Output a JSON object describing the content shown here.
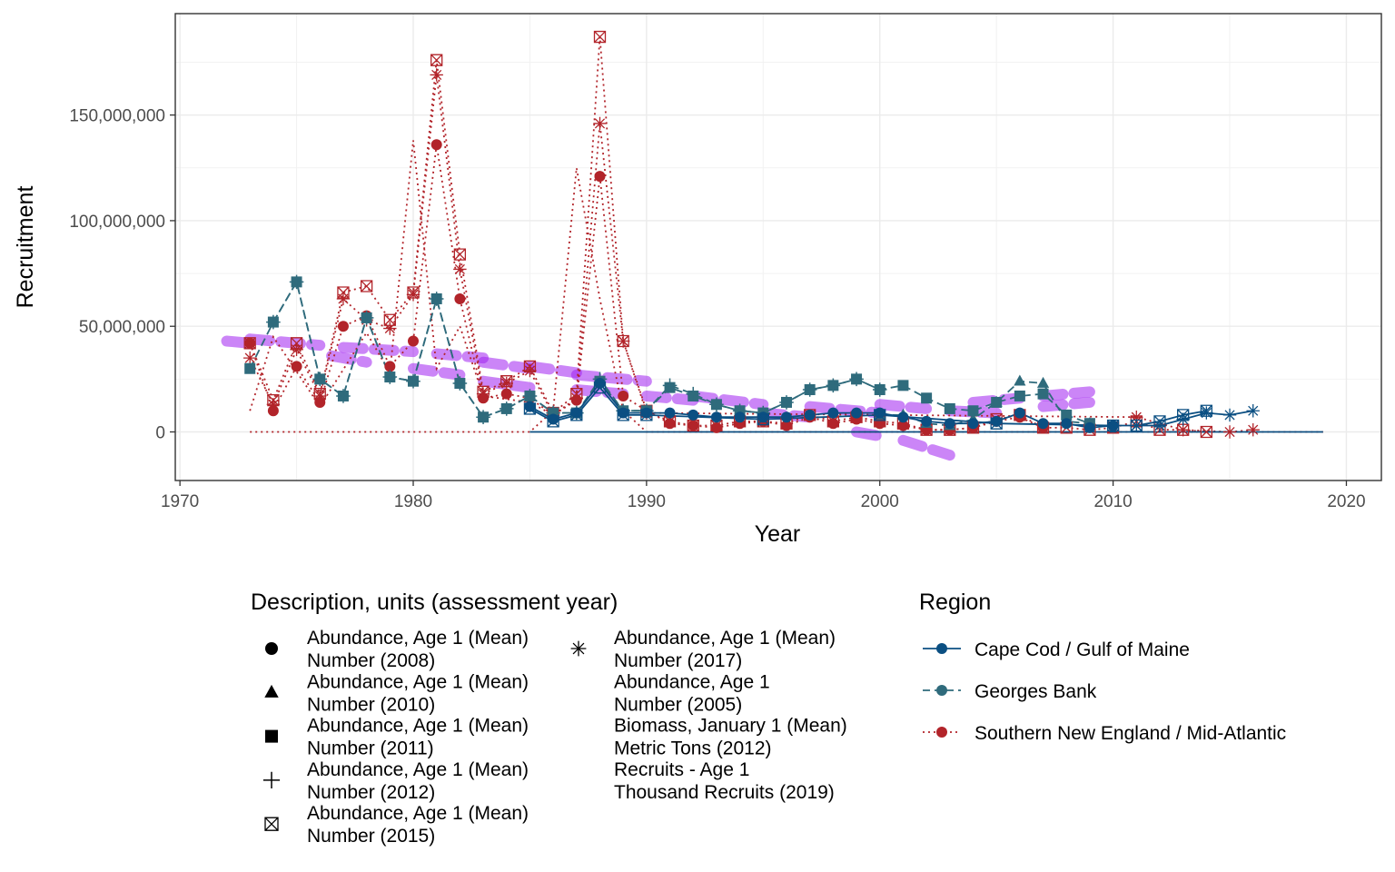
{
  "chart_data": {
    "type": "line",
    "xlabel": "Year",
    "ylabel": "Recruitment",
    "xlim": [
      1969.8,
      2021.5
    ],
    "ylim": [
      -23000000,
      198000000
    ],
    "x_ticks": [
      1970,
      1980,
      1990,
      2000,
      2010,
      2020
    ],
    "x_tick_labels": [
      "1970",
      "1980",
      "1990",
      "2000",
      "2010",
      "2020"
    ],
    "y_ticks": [
      0,
      50000000,
      100000000,
      150000000
    ],
    "y_tick_labels": [
      "0",
      "50,000,000",
      "100,000,000",
      "150,000,000"
    ],
    "grid": true,
    "shape_legend": {
      "title": "Description, units (assessment year)",
      "entries": [
        {
          "shape": "circle",
          "line1": "Abundance, Age 1 (Mean)",
          "line2": "Number (2008)"
        },
        {
          "shape": "triangle",
          "line1": "Abundance, Age 1 (Mean)",
          "line2": "Number (2010)"
        },
        {
          "shape": "square",
          "line1": "Abundance, Age 1 (Mean)",
          "line2": "Number (2011)"
        },
        {
          "shape": "plus",
          "line1": "Abundance, Age 1 (Mean)",
          "line2": "Number (2012)"
        },
        {
          "shape": "boxx",
          "line1": "Abundance, Age 1 (Mean)",
          "line2": "Number (2015)"
        },
        {
          "shape": "star",
          "line1": "Abundance, Age 1 (Mean)",
          "line2": "Number (2017)"
        },
        {
          "shape": "none",
          "line1": "Abundance, Age 1",
          "line2": "Number (2005)"
        },
        {
          "shape": "none",
          "line1": "Biomass, January 1 (Mean)",
          "line2": "Metric Tons (2012)"
        },
        {
          "shape": "none",
          "line1": "Recruits - Age 1",
          "line2": "Thousand Recruits (2019)"
        }
      ]
    },
    "region_legend": {
      "title": "Region",
      "entries": [
        {
          "name": "Cape Cod / Gulf of Maine",
          "color": "#0b4f82",
          "dash": "solid"
        },
        {
          "name": "Georges Bank",
          "color": "#2f6b7c",
          "dash": "dashed"
        },
        {
          "name": "Southern New England / Mid-Atlantic",
          "color": "#b2242a",
          "dash": "dotted"
        }
      ]
    },
    "series": [
      {
        "region": "Southern New England / Mid-Atlantic",
        "shape": "circle",
        "color": "#b2242a",
        "dash": "dotted",
        "x": [
          1973,
          1974,
          1975,
          1976,
          1977,
          1978,
          1979,
          1980,
          1981,
          1982,
          1983,
          1984,
          1985,
          1986,
          1987,
          1988,
          1989,
          1990,
          1991,
          1992,
          1993,
          1994,
          1995,
          1996,
          1997,
          1998,
          1999,
          2000,
          2001,
          2002,
          2003,
          2004,
          2005,
          2006,
          2007
        ],
        "y": [
          42000000,
          10000000,
          31000000,
          14000000,
          50000000,
          55000000,
          31000000,
          43000000,
          136000000,
          63000000,
          16000000,
          18000000,
          16000000,
          8000000,
          15000000,
          121000000,
          17000000,
          10000000,
          4000000,
          3000000,
          2000000,
          4000000,
          5000000,
          3000000,
          7000000,
          4000000,
          6000000,
          4000000,
          3000000,
          1000000,
          1000000,
          2000000,
          5000000,
          7000000,
          2000000
        ]
      },
      {
        "region": "Southern New England / Mid-Atlantic",
        "shape": "boxx",
        "color": "#b2242a",
        "dash": "dotted",
        "x": [
          1973,
          1974,
          1975,
          1976,
          1977,
          1978,
          1979,
          1980,
          1981,
          1982,
          1983,
          1984,
          1985,
          1986,
          1987,
          1988,
          1989,
          1990,
          1991,
          1992,
          1993,
          1994,
          1995,
          1996,
          1997,
          1998,
          1999,
          2000,
          2001,
          2002,
          2003,
          2004,
          2005,
          2006,
          2007,
          2008,
          2009,
          2010,
          2011,
          2012,
          2013,
          2014
        ],
        "y": [
          42000000,
          15000000,
          42000000,
          18000000,
          66000000,
          69000000,
          53000000,
          66000000,
          176000000,
          84000000,
          19000000,
          24000000,
          31000000,
          9000000,
          18000000,
          187000000,
          43000000,
          10000000,
          5000000,
          3000000,
          3000000,
          5000000,
          5000000,
          4000000,
          8000000,
          5000000,
          7000000,
          5000000,
          4000000,
          1000000,
          1000000,
          2000000,
          6000000,
          8000000,
          2000000,
          2000000,
          1000000,
          2000000,
          5000000,
          1000000,
          1000000,
          0
        ]
      },
      {
        "region": "Southern New England / Mid-Atlantic",
        "shape": "star",
        "color": "#b2242a",
        "dash": "dotted",
        "x": [
          1973,
          1974,
          1975,
          1976,
          1977,
          1978,
          1979,
          1980,
          1981,
          1982,
          1983,
          1984,
          1985,
          1986,
          1987,
          1988,
          1989,
          1990,
          2011,
          2013,
          2015,
          2016
        ],
        "y": [
          35000000,
          13000000,
          39000000,
          17000000,
          63000000,
          53000000,
          49000000,
          65000000,
          169000000,
          77000000,
          18000000,
          23000000,
          29000000,
          8000000,
          16000000,
          146000000,
          43000000,
          9000000,
          7000000,
          1000000,
          0,
          1000000
        ]
      },
      {
        "region": "Southern New England / Mid-Atlantic",
        "shape": "none",
        "color": "#b2242a",
        "dash": "dotted",
        "x": [
          1973,
          1985,
          1986,
          1987,
          1988,
          1989,
          1990,
          2000,
          2010,
          2019
        ],
        "y": [
          0,
          0,
          10000000,
          125000000,
          63000000,
          10000000,
          0,
          0,
          0,
          0
        ]
      },
      {
        "region": "Southern New England / Mid-Atlantic",
        "shape": "none",
        "color": "#b2242a",
        "dash": "dotted",
        "x": [
          1973,
          1974,
          1976,
          1978,
          1979,
          1980,
          1981,
          1982,
          1983,
          1985,
          1986
        ],
        "y": [
          10000000,
          45000000,
          12000000,
          47000000,
          28000000,
          138000000,
          30000000,
          50000000,
          17000000,
          14000000,
          8000000
        ]
      },
      {
        "region": "Georges Bank",
        "shape": "square",
        "color": "#2f6b7c",
        "dash": "dashed",
        "x": [
          1973,
          1974,
          1975,
          1976,
          1977,
          1978,
          1979,
          1980,
          1981,
          1982,
          1983,
          1984,
          1985,
          1986,
          1987,
          1988,
          1989,
          1990,
          1991,
          1992,
          1993,
          1994,
          1995,
          1996,
          1997,
          1998,
          1999,
          2000,
          2001,
          2002,
          2003,
          2004,
          2005,
          2006,
          2007,
          2008,
          2009
        ],
        "y": [
          30000000,
          52000000,
          71000000,
          25000000,
          17000000,
          54000000,
          26000000,
          24000000,
          63000000,
          23000000,
          7000000,
          11000000,
          17000000,
          9000000,
          9000000,
          24000000,
          10000000,
          10000000,
          21000000,
          17000000,
          13000000,
          10000000,
          9000000,
          14000000,
          20000000,
          22000000,
          25000000,
          20000000,
          22000000,
          16000000,
          11000000,
          10000000,
          14000000,
          17000000,
          18000000,
          8000000,
          4000000
        ]
      },
      {
        "region": "Georges Bank",
        "shape": "triangle",
        "color": "#2f6b7c",
        "dash": "dashed",
        "x": [
          2000,
          2001,
          2002,
          2003,
          2004,
          2005,
          2006,
          2007,
          2008,
          2009
        ],
        "y": [
          8000000,
          8000000,
          4000000,
          3000000,
          6000000,
          14000000,
          24000000,
          23000000,
          5000000,
          4000000
        ]
      },
      {
        "region": "Georges Bank",
        "shape": "plus",
        "color": "#2f6b7c",
        "dash": "dashed",
        "x": [
          1974,
          1975,
          1976,
          1977,
          1978,
          1979,
          1980,
          1981,
          1982,
          1983,
          1984,
          1985,
          1986,
          1987,
          1988,
          1989,
          1990,
          1991,
          1992,
          1993,
          1994,
          1995,
          1996,
          1997,
          1998,
          1999,
          2000
        ],
        "y": [
          52000000,
          71000000,
          25000000,
          17000000,
          54000000,
          26000000,
          24000000,
          63000000,
          23000000,
          7000000,
          11000000,
          17000000,
          9000000,
          9000000,
          25000000,
          10000000,
          10000000,
          22000000,
          18000000,
          13000000,
          10000000,
          9000000,
          14000000,
          20000000,
          22000000,
          25000000,
          20000000
        ]
      },
      {
        "region": "Cape Cod / Gulf of Maine",
        "shape": "circle",
        "color": "#0b4f82",
        "dash": "solid",
        "x": [
          1985,
          1986,
          1987,
          1988,
          1989,
          1990,
          1991,
          1992,
          1993,
          1994,
          1995,
          1996,
          1997,
          1998,
          1999,
          2000,
          2001,
          2002,
          2003,
          2004,
          2005,
          2006,
          2007,
          2008,
          2009,
          2010
        ],
        "y": [
          12000000,
          6000000,
          9000000,
          23000000,
          9000000,
          9000000,
          9000000,
          8000000,
          7000000,
          7000000,
          7000000,
          7000000,
          8000000,
          9000000,
          9000000,
          9000000,
          7000000,
          5000000,
          4000000,
          4000000,
          5000000,
          9000000,
          4000000,
          4000000,
          2000000,
          3000000
        ]
      },
      {
        "region": "Cape Cod / Gulf of Maine",
        "shape": "boxx",
        "color": "#0b4f82",
        "dash": "solid",
        "x": [
          1985,
          1986,
          1987,
          1988,
          1989,
          1990,
          1995,
          2000,
          2005,
          2010,
          2011,
          2012,
          2013,
          2014
        ],
        "y": [
          11000000,
          5000000,
          8000000,
          21000000,
          8000000,
          8000000,
          6000000,
          8000000,
          4000000,
          3000000,
          3000000,
          5000000,
          8000000,
          10000000
        ]
      },
      {
        "region": "Cape Cod / Gulf of Maine",
        "shape": "star",
        "color": "#0b4f82",
        "dash": "solid",
        "x": [
          2011,
          2012,
          2013,
          2014,
          2015,
          2016
        ],
        "y": [
          3000000,
          3000000,
          6000000,
          9000000,
          8000000,
          10000000
        ]
      },
      {
        "region": "Cape Cod / Gulf of Maine",
        "shape": "none",
        "color": "#0b4f82",
        "dash": "solid",
        "x": [
          1985,
          1990,
          2000,
          2010,
          2019
        ],
        "y": [
          0,
          0,
          0,
          0,
          0
        ]
      }
    ],
    "segments": [
      {
        "color": "#a020f0",
        "dash": "thick-dashed",
        "x": [
          1972,
          1973
        ],
        "y": [
          43000000,
          42000000
        ]
      },
      {
        "color": "#a020f0",
        "dash": "thick-dashed",
        "x": [
          1973,
          1976
        ],
        "y": [
          44000000,
          41000000
        ]
      },
      {
        "color": "#a020f0",
        "dash": "thick-dashed",
        "x": [
          1976.5,
          1978
        ],
        "y": [
          36000000,
          33000000
        ]
      },
      {
        "color": "#a020f0",
        "dash": "thick-dashed",
        "x": [
          1977,
          1980
        ],
        "y": [
          40000000,
          38000000
        ]
      },
      {
        "color": "#a020f0",
        "dash": "thick-dashed",
        "x": [
          1980,
          1982
        ],
        "y": [
          30000000,
          27000000
        ]
      },
      {
        "color": "#a020f0",
        "dash": "thick-dashed",
        "x": [
          1981,
          1983
        ],
        "y": [
          37000000,
          35000000
        ]
      },
      {
        "color": "#a020f0",
        "dash": "thick-dashed",
        "x": [
          1983,
          1985
        ],
        "y": [
          33000000,
          30000000
        ]
      },
      {
        "color": "#a020f0",
        "dash": "thick-dashed",
        "x": [
          1983,
          1985
        ],
        "y": [
          24000000,
          21000000
        ]
      },
      {
        "color": "#a020f0",
        "dash": "thick-dashed",
        "x": [
          1985,
          1987
        ],
        "y": [
          31000000,
          28000000
        ]
      },
      {
        "color": "#a020f0",
        "dash": "thick-dashed",
        "x": [
          1987,
          1989
        ],
        "y": [
          20000000,
          18000000
        ]
      },
      {
        "color": "#a020f0",
        "dash": "thick-dashed",
        "x": [
          1987,
          1990
        ],
        "y": [
          27000000,
          24000000
        ]
      },
      {
        "color": "#a020f0",
        "dash": "thick-dashed",
        "x": [
          1990,
          1992
        ],
        "y": [
          17000000,
          15000000
        ]
      },
      {
        "color": "#a020f0",
        "dash": "thick-dashed",
        "x": [
          1992,
          1995
        ],
        "y": [
          17000000,
          13000000
        ]
      },
      {
        "color": "#a020f0",
        "dash": "thick-dashed",
        "x": [
          1995,
          1997
        ],
        "y": [
          9000000,
          7000000
        ]
      },
      {
        "color": "#a020f0",
        "dash": "thick-dashed",
        "x": [
          1997,
          2000
        ],
        "y": [
          12000000,
          9000000
        ]
      },
      {
        "color": "#a020f0",
        "dash": "thick-dashed",
        "x": [
          1999,
          2000
        ],
        "y": [
          0,
          -2000000
        ]
      },
      {
        "color": "#a020f0",
        "dash": "thick-dashed",
        "x": [
          2000,
          2002
        ],
        "y": [
          13000000,
          11000000
        ]
      },
      {
        "color": "#a020f0",
        "dash": "thick-dashed",
        "x": [
          2001,
          2003
        ],
        "y": [
          -4000000,
          -11000000
        ]
      },
      {
        "color": "#a020f0",
        "dash": "thick-dashed",
        "x": [
          2003,
          2005
        ],
        "y": [
          10000000,
          9000000
        ]
      },
      {
        "color": "#a020f0",
        "dash": "thick-dashed",
        "x": [
          2004,
          2006
        ],
        "y": [
          14000000,
          16000000
        ]
      },
      {
        "color": "#a020f0",
        "dash": "thick-dashed",
        "x": [
          2007,
          2009
        ],
        "y": [
          12000000,
          14000000
        ]
      },
      {
        "color": "#a020f0",
        "dash": "thick-dashed",
        "x": [
          2007,
          2009
        ],
        "y": [
          17000000,
          19000000
        ]
      }
    ]
  }
}
